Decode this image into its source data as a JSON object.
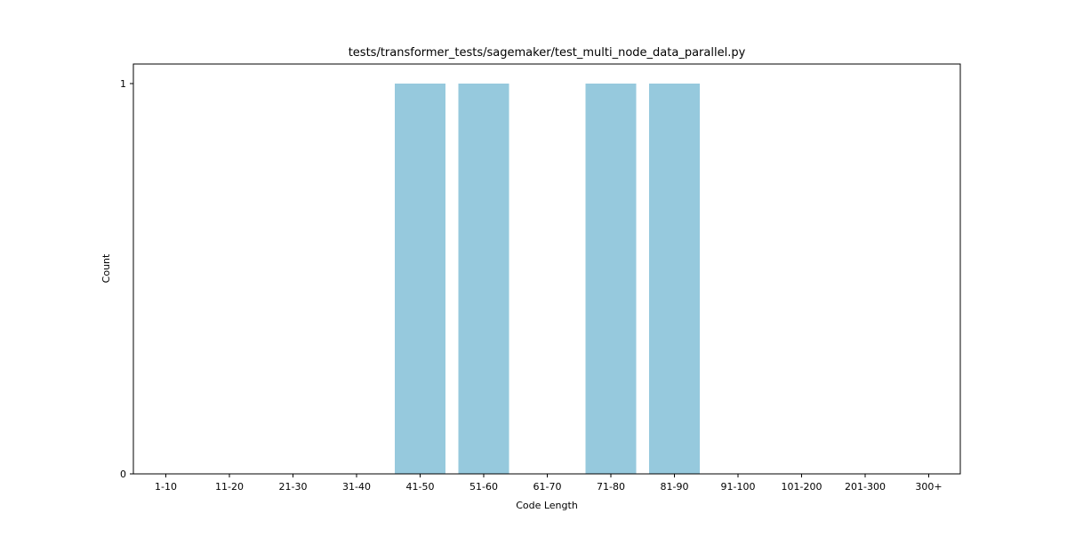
{
  "chart_data": {
    "type": "bar",
    "title": "tests/transformer_tests/sagemaker/test_multi_node_data_parallel.py",
    "xlabel": "Code Length",
    "ylabel": "Count",
    "categories": [
      "1-10",
      "11-20",
      "21-30",
      "31-40",
      "41-50",
      "51-60",
      "61-70",
      "71-80",
      "81-90",
      "91-100",
      "101-200",
      "201-300",
      "300+"
    ],
    "values": [
      0,
      0,
      0,
      0,
      1,
      1,
      0,
      1,
      1,
      0,
      0,
      0,
      0
    ],
    "ylim": [
      0,
      1
    ],
    "yticks": [
      0,
      1
    ],
    "bar_color": "#96c9dd",
    "grid": false,
    "legend": "none"
  }
}
